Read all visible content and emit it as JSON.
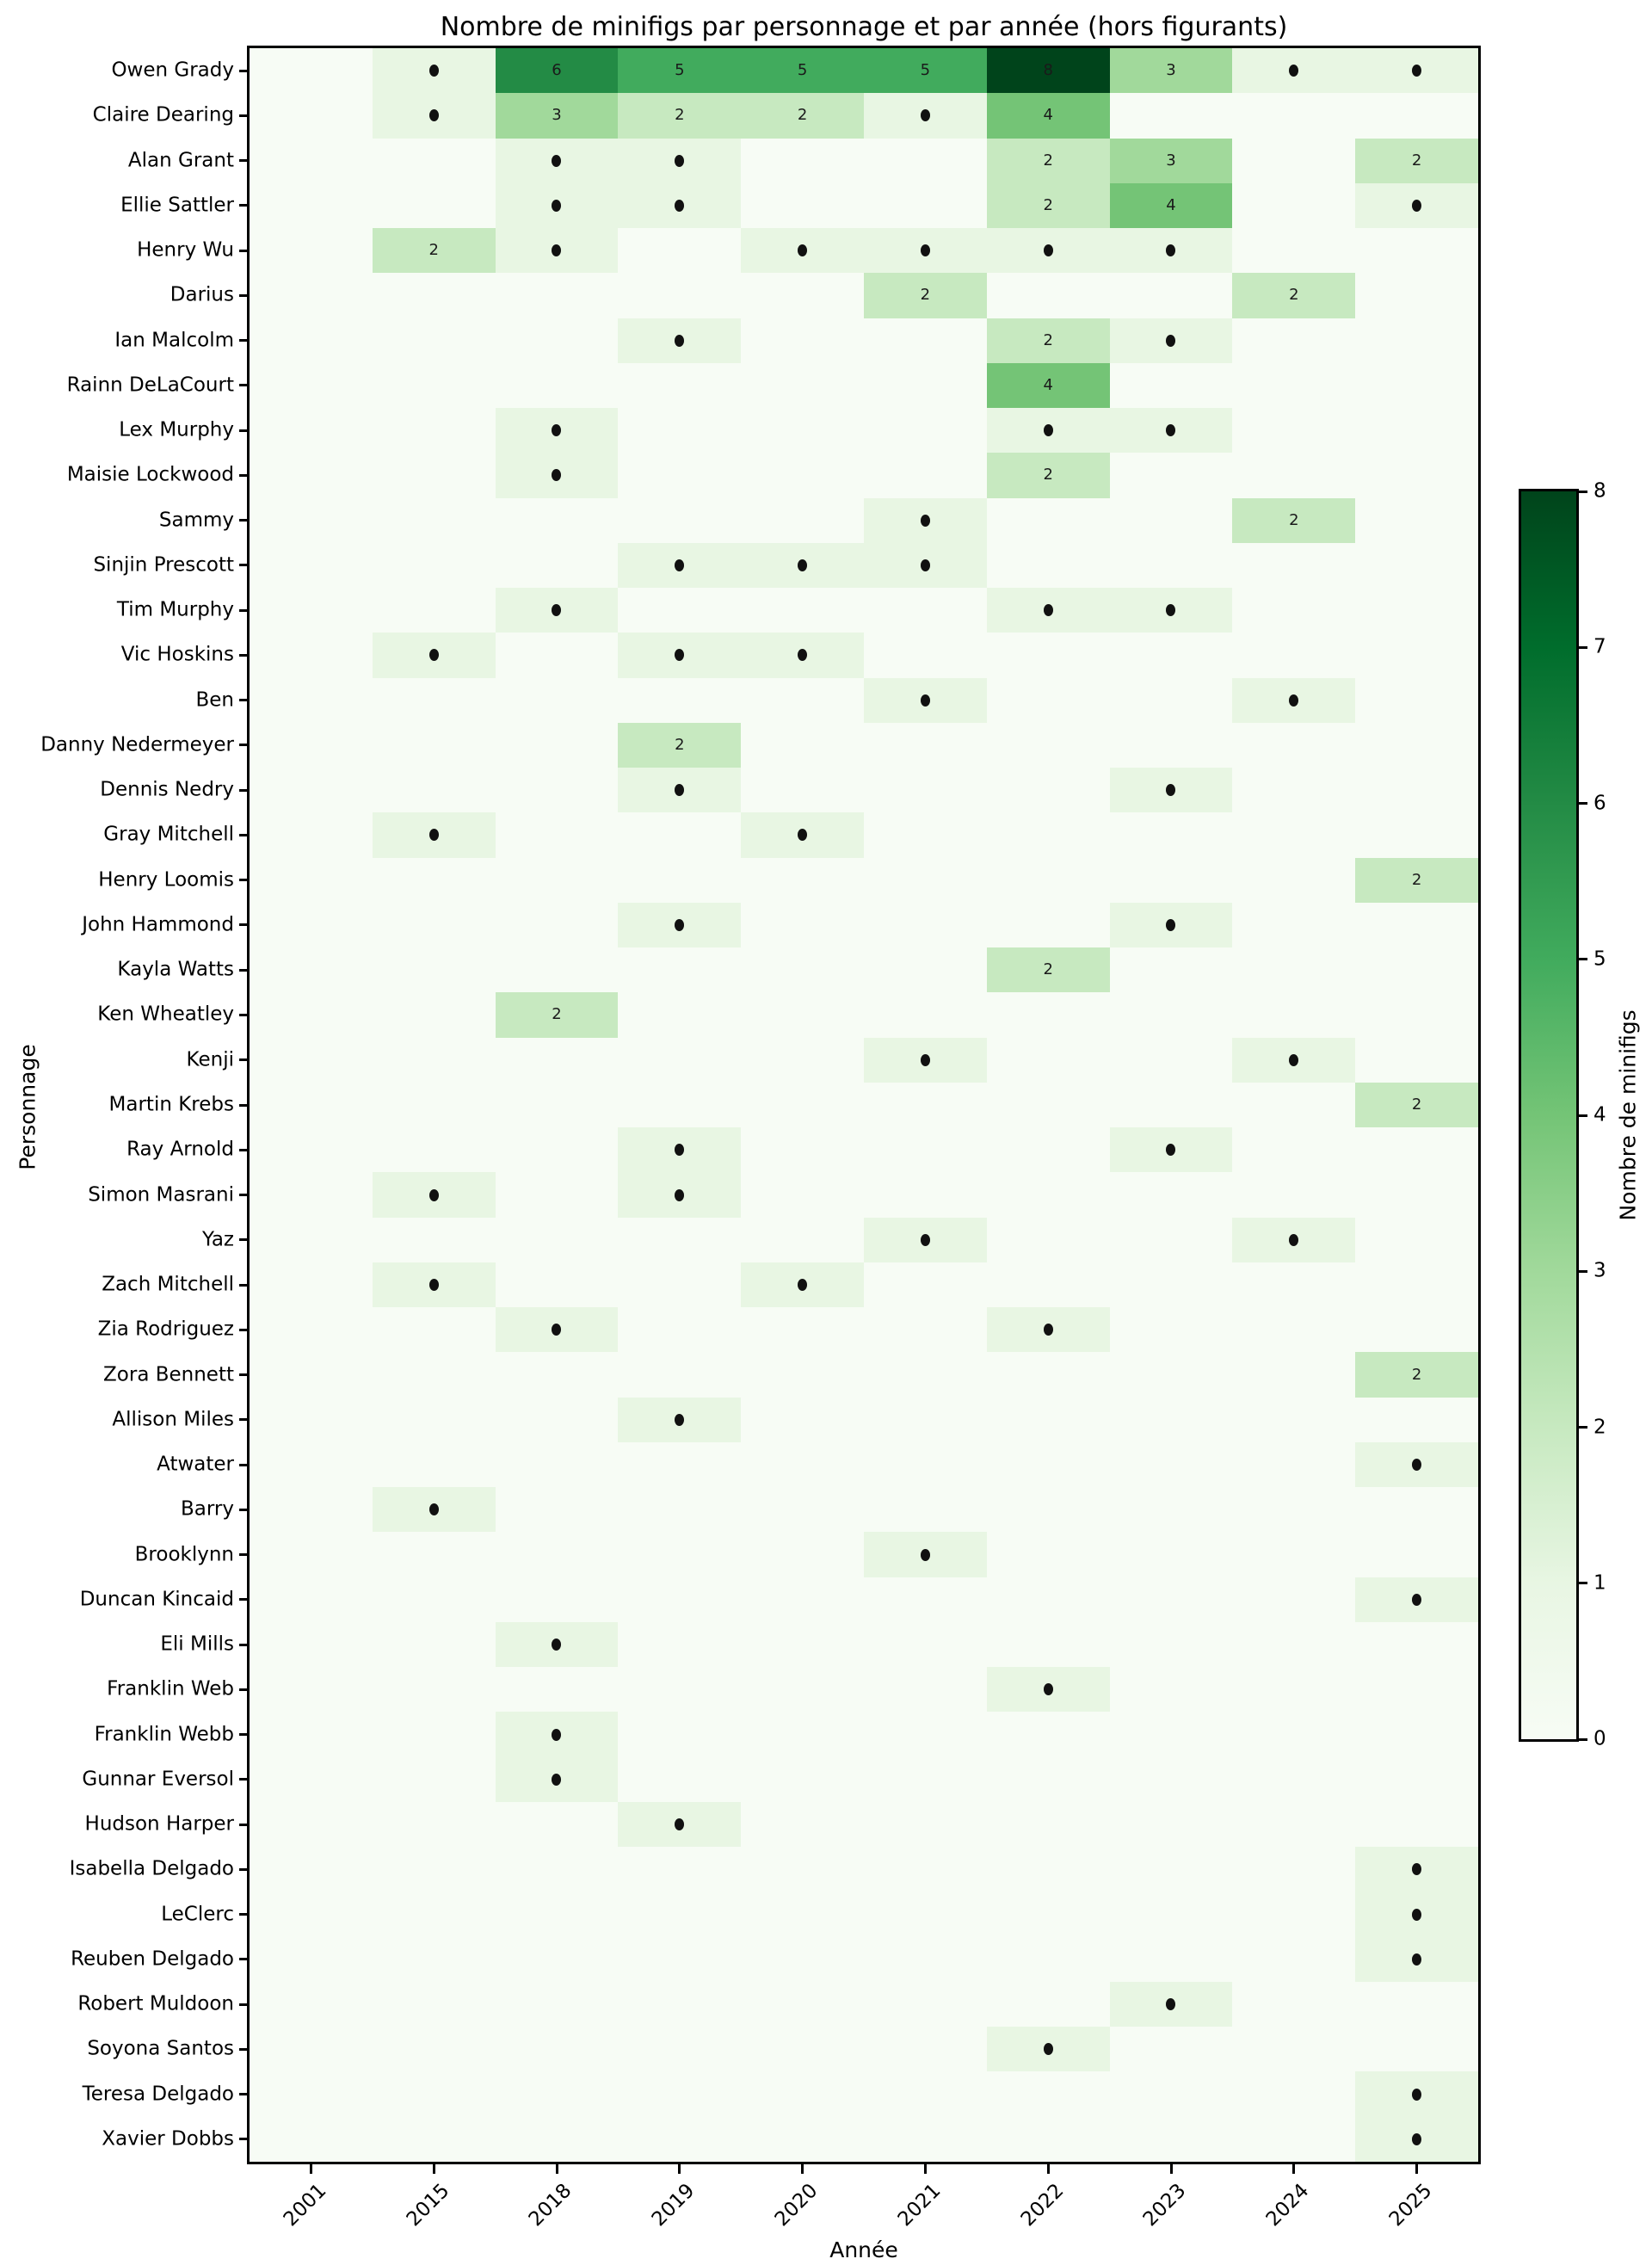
{
  "chart_data": {
    "type": "heatmap",
    "title": "Nombre de minifigs par personnage et par année (hors figurants)",
    "xlabel": "Année",
    "ylabel": "Personnage",
    "colorbar_label": "Nombre de minifigs",
    "colorbar_ticks": [
      0,
      1,
      2,
      3,
      4,
      5,
      6,
      7,
      8
    ],
    "value_range": [
      0,
      8
    ],
    "colormap_name": "Greens",
    "annotation_style": "value 1 shown as black dot, values >= 2 shown as number",
    "palette": {
      "0": "#f7fcf5",
      "1": "#e8f6e3",
      "2": "#c7e9c0",
      "3": "#a1d99b",
      "4": "#74c476",
      "5": "#41ab5d",
      "6": "#238b45",
      "7": "#006d2c",
      "8": "#00441b"
    },
    "years": [
      "2001",
      "2015",
      "2018",
      "2019",
      "2020",
      "2021",
      "2022",
      "2023",
      "2024",
      "2025"
    ],
    "characters": [
      "Owen Grady",
      "Claire Dearing",
      "Alan Grant",
      "Ellie Sattler",
      "Henry Wu",
      "Darius",
      "Ian Malcolm",
      "Rainn DeLaCourt",
      "Lex Murphy",
      "Maisie Lockwood",
      "Sammy",
      "Sinjin Prescott",
      "Tim Murphy",
      "Vic Hoskins",
      "Ben",
      "Danny Nedermeyer",
      "Dennis Nedry",
      "Gray Mitchell",
      "Henry Loomis",
      "John Hammond",
      "Kayla Watts",
      "Ken Wheatley",
      "Kenji",
      "Martin Krebs",
      "Ray Arnold",
      "Simon Masrani",
      "Yaz",
      "Zach Mitchell",
      "Zia Rodriguez",
      "Zora Bennett",
      "Allison Miles",
      "Atwater",
      "Barry",
      "Brooklynn",
      "Duncan Kincaid",
      "Eli Mills",
      "Franklin Web",
      "Franklin Webb",
      "Gunnar Eversol",
      "Hudson Harper",
      "Isabella Delgado",
      "LeClerc",
      "Reuben Delgado",
      "Robert Muldoon",
      "Soyona Santos",
      "Teresa Delgado",
      "Xavier Dobbs"
    ],
    "values": [
      [
        0,
        1,
        6,
        5,
        5,
        5,
        8,
        3,
        1,
        1
      ],
      [
        0,
        1,
        3,
        2,
        2,
        1,
        4,
        0,
        0,
        0
      ],
      [
        0,
        0,
        1,
        1,
        0,
        0,
        2,
        3,
        0,
        2
      ],
      [
        0,
        0,
        1,
        1,
        0,
        0,
        2,
        4,
        0,
        1
      ],
      [
        0,
        2,
        1,
        0,
        1,
        1,
        1,
        1,
        0,
        0
      ],
      [
        0,
        0,
        0,
        0,
        0,
        2,
        0,
        0,
        2,
        0
      ],
      [
        0,
        0,
        0,
        1,
        0,
        0,
        2,
        1,
        0,
        0
      ],
      [
        0,
        0,
        0,
        0,
        0,
        0,
        4,
        0,
        0,
        0
      ],
      [
        0,
        0,
        1,
        0,
        0,
        0,
        1,
        1,
        0,
        0
      ],
      [
        0,
        0,
        1,
        0,
        0,
        0,
        2,
        0,
        0,
        0
      ],
      [
        0,
        0,
        0,
        0,
        0,
        1,
        0,
        0,
        2,
        0
      ],
      [
        0,
        0,
        0,
        1,
        1,
        1,
        0,
        0,
        0,
        0
      ],
      [
        0,
        0,
        1,
        0,
        0,
        0,
        1,
        1,
        0,
        0
      ],
      [
        0,
        1,
        0,
        1,
        1,
        0,
        0,
        0,
        0,
        0
      ],
      [
        0,
        0,
        0,
        0,
        0,
        1,
        0,
        0,
        1,
        0
      ],
      [
        0,
        0,
        0,
        2,
        0,
        0,
        0,
        0,
        0,
        0
      ],
      [
        0,
        0,
        0,
        1,
        0,
        0,
        0,
        1,
        0,
        0
      ],
      [
        0,
        1,
        0,
        0,
        1,
        0,
        0,
        0,
        0,
        0
      ],
      [
        0,
        0,
        0,
        0,
        0,
        0,
        0,
        0,
        0,
        2
      ],
      [
        0,
        0,
        0,
        1,
        0,
        0,
        0,
        1,
        0,
        0
      ],
      [
        0,
        0,
        0,
        0,
        0,
        0,
        2,
        0,
        0,
        0
      ],
      [
        0,
        0,
        2,
        0,
        0,
        0,
        0,
        0,
        0,
        0
      ],
      [
        0,
        0,
        0,
        0,
        0,
        1,
        0,
        0,
        1,
        0
      ],
      [
        0,
        0,
        0,
        0,
        0,
        0,
        0,
        0,
        0,
        2
      ],
      [
        0,
        0,
        0,
        1,
        0,
        0,
        0,
        1,
        0,
        0
      ],
      [
        0,
        1,
        0,
        1,
        0,
        0,
        0,
        0,
        0,
        0
      ],
      [
        0,
        0,
        0,
        0,
        0,
        1,
        0,
        0,
        1,
        0
      ],
      [
        0,
        1,
        0,
        0,
        1,
        0,
        0,
        0,
        0,
        0
      ],
      [
        0,
        0,
        1,
        0,
        0,
        0,
        1,
        0,
        0,
        0
      ],
      [
        0,
        0,
        0,
        0,
        0,
        0,
        0,
        0,
        0,
        2
      ],
      [
        0,
        0,
        0,
        1,
        0,
        0,
        0,
        0,
        0,
        0
      ],
      [
        0,
        0,
        0,
        0,
        0,
        0,
        0,
        0,
        0,
        1
      ],
      [
        0,
        1,
        0,
        0,
        0,
        0,
        0,
        0,
        0,
        0
      ],
      [
        0,
        0,
        0,
        0,
        0,
        1,
        0,
        0,
        0,
        0
      ],
      [
        0,
        0,
        0,
        0,
        0,
        0,
        0,
        0,
        0,
        1
      ],
      [
        0,
        0,
        1,
        0,
        0,
        0,
        0,
        0,
        0,
        0
      ],
      [
        0,
        0,
        0,
        0,
        0,
        0,
        1,
        0,
        0,
        0
      ],
      [
        0,
        0,
        1,
        0,
        0,
        0,
        0,
        0,
        0,
        0
      ],
      [
        0,
        0,
        1,
        0,
        0,
        0,
        0,
        0,
        0,
        0
      ],
      [
        0,
        0,
        0,
        1,
        0,
        0,
        0,
        0,
        0,
        0
      ],
      [
        0,
        0,
        0,
        0,
        0,
        0,
        0,
        0,
        0,
        1
      ],
      [
        0,
        0,
        0,
        0,
        0,
        0,
        0,
        0,
        0,
        1
      ],
      [
        0,
        0,
        0,
        0,
        0,
        0,
        0,
        0,
        0,
        1
      ],
      [
        0,
        0,
        0,
        0,
        0,
        0,
        0,
        1,
        0,
        0
      ],
      [
        0,
        0,
        0,
        0,
        0,
        0,
        1,
        0,
        0,
        0
      ],
      [
        0,
        0,
        0,
        0,
        0,
        0,
        0,
        0,
        0,
        1
      ],
      [
        0,
        0,
        0,
        0,
        0,
        0,
        0,
        0,
        0,
        1
      ]
    ]
  }
}
